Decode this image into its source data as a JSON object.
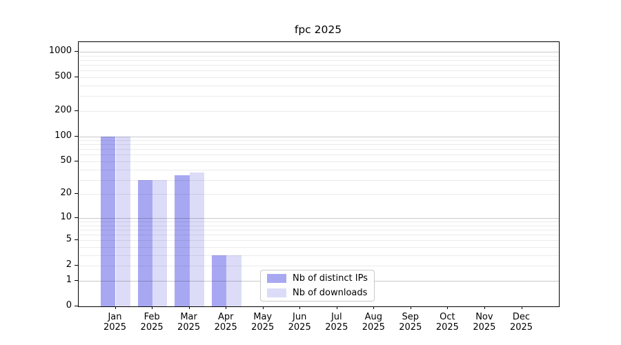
{
  "chart_data": {
    "type": "bar",
    "title": "fpc 2025",
    "categories": [
      "Jan",
      "Feb",
      "Mar",
      "Apr",
      "May",
      "Jun",
      "Jul",
      "Aug",
      "Sep",
      "Oct",
      "Nov",
      "Dec"
    ],
    "category_year": "2025",
    "series": [
      {
        "name": "Nb of distinct IPs",
        "color": "#a8a8f2",
        "values": [
          100,
          30,
          34,
          3,
          0,
          0,
          0,
          0,
          0,
          0,
          0,
          0
        ]
      },
      {
        "name": "Nb of downloads",
        "color": "#dcdcf9",
        "values": [
          100,
          30,
          37,
          3,
          0,
          0,
          0,
          0,
          0,
          0,
          0,
          0
        ]
      }
    ],
    "y_scale": "log10(value+1)",
    "y_ticks": [
      0,
      1,
      2,
      5,
      10,
      20,
      50,
      100,
      200,
      500,
      1000
    ],
    "y_major_gridlines": [
      1,
      10,
      100,
      1000
    ],
    "ylim": [
      0,
      1311
    ],
    "grid": true,
    "legend_position": "inside-bottom-center",
    "colors": {
      "axis": "#000000",
      "grid_major": "#c9c9c9",
      "grid_minor": "#ebebeb",
      "background": "#ffffff"
    }
  }
}
